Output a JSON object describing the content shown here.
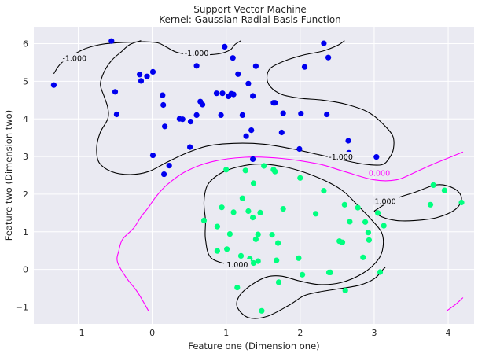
{
  "chart_data": {
    "type": "scatter",
    "title": "Support Vector Machine",
    "subtitle": "Kernel: Gaussian Radial Basis Function",
    "xlabel": "Feature one (Dimension one)",
    "ylabel": "Feature two (Dimension two)",
    "xlim": [
      -1.6,
      4.35
    ],
    "ylim": [
      -1.45,
      6.45
    ],
    "xticks": [
      -1,
      0,
      1,
      2,
      3,
      4
    ],
    "yticks": [
      -1,
      0,
      1,
      2,
      3,
      4,
      5,
      6
    ],
    "xtick_labels": [
      "−1",
      "0",
      "1",
      "2",
      "3",
      "4"
    ],
    "ytick_labels": [
      "−1",
      "0",
      "1",
      "2",
      "3",
      "4",
      "5",
      "6"
    ],
    "grid": true,
    "colors": {
      "background": "#eaeaf2",
      "grid": "#ffffff",
      "class_a": "#0000ee",
      "class_b": "#00ff7f",
      "decision_boundary": "#ff00ff",
      "margin": "#000000"
    },
    "series": [
      {
        "points": [
          [
            -1.33,
            4.9
          ],
          [
            -0.55,
            6.07
          ],
          [
            -0.5,
            4.72
          ],
          [
            -0.48,
            4.12
          ],
          [
            -0.17,
            5.18
          ],
          [
            -0.15,
            5.01
          ],
          [
            -0.07,
            5.13
          ],
          [
            0.01,
            5.25
          ],
          [
            0.01,
            3.03
          ],
          [
            0.14,
            4.63
          ],
          [
            0.15,
            4.37
          ],
          [
            0.17,
            3.8
          ],
          [
            0.16,
            2.53
          ],
          [
            0.23,
            2.76
          ],
          [
            0.37,
            4.0
          ],
          [
            0.41,
            3.99
          ],
          [
            0.51,
            3.25
          ],
          [
            0.52,
            3.93
          ],
          [
            0.6,
            5.41
          ],
          [
            0.6,
            4.1
          ],
          [
            0.65,
            4.46
          ],
          [
            0.68,
            4.38
          ],
          [
            0.87,
            4.68
          ],
          [
            0.93,
            4.1
          ],
          [
            0.95,
            4.68
          ],
          [
            0.98,
            5.92
          ],
          [
            1.03,
            4.6
          ],
          [
            1.07,
            4.67
          ],
          [
            1.09,
            5.62
          ],
          [
            1.1,
            4.65
          ],
          [
            1.16,
            5.19
          ],
          [
            1.22,
            4.1
          ],
          [
            1.27,
            3.54
          ],
          [
            1.3,
            4.94
          ],
          [
            1.34,
            3.7
          ],
          [
            1.36,
            4.61
          ],
          [
            1.36,
            2.93
          ],
          [
            1.4,
            5.4
          ],
          [
            1.64,
            4.43
          ],
          [
            1.66,
            4.43
          ],
          [
            1.75,
            3.64
          ],
          [
            1.77,
            4.15
          ],
          [
            1.99,
            3.2
          ],
          [
            2.01,
            4.14
          ],
          [
            2.06,
            5.38
          ],
          [
            2.32,
            6.01
          ],
          [
            2.36,
            4.12
          ],
          [
            2.38,
            5.63
          ],
          [
            2.65,
            3.42
          ],
          [
            2.66,
            3.1
          ],
          [
            3.03,
            2.99
          ]
        ]
      },
      {
        "points": [
          [
            0.7,
            1.3
          ],
          [
            0.88,
            1.14
          ],
          [
            0.88,
            0.49
          ],
          [
            0.94,
            1.65
          ],
          [
            1.0,
            2.65
          ],
          [
            1.01,
            0.54
          ],
          [
            1.05,
            0.94
          ],
          [
            1.1,
            1.52
          ],
          [
            1.15,
            -0.48
          ],
          [
            1.2,
            0.36
          ],
          [
            1.22,
            1.89
          ],
          [
            1.26,
            2.63
          ],
          [
            1.3,
            1.55
          ],
          [
            1.32,
            0.28
          ],
          [
            1.36,
            1.38
          ],
          [
            1.37,
            0.17
          ],
          [
            1.37,
            2.29
          ],
          [
            1.4,
            0.8
          ],
          [
            1.43,
            0.93
          ],
          [
            1.43,
            0.22
          ],
          [
            1.46,
            1.51
          ],
          [
            1.48,
            -1.1
          ],
          [
            1.51,
            2.75
          ],
          [
            1.62,
            0.92
          ],
          [
            1.64,
            2.65
          ],
          [
            1.66,
            2.6
          ],
          [
            1.68,
            0.24
          ],
          [
            1.7,
            0.7
          ],
          [
            1.71,
            -0.34
          ],
          [
            1.77,
            1.61
          ],
          [
            1.98,
            0.3
          ],
          [
            2.0,
            2.43
          ],
          [
            2.03,
            -0.14
          ],
          [
            2.21,
            1.48
          ],
          [
            2.32,
            2.09
          ],
          [
            2.39,
            -0.08
          ],
          [
            2.41,
            -0.08
          ],
          [
            2.53,
            0.75
          ],
          [
            2.57,
            0.72
          ],
          [
            2.6,
            1.72
          ],
          [
            2.61,
            -0.56
          ],
          [
            2.67,
            1.27
          ],
          [
            2.78,
            1.64
          ],
          [
            2.85,
            0.32
          ],
          [
            2.88,
            1.26
          ],
          [
            2.92,
            0.98
          ],
          [
            2.93,
            0.78
          ],
          [
            3.05,
            1.5
          ],
          [
            3.08,
            -0.07
          ],
          [
            3.13,
            1.16
          ],
          [
            3.8,
            2.24
          ],
          [
            3.76,
            1.72
          ],
          [
            3.95,
            2.1
          ],
          [
            4.18,
            1.78
          ]
        ]
      }
    ],
    "contours": [
      {
        "level": 0.0,
        "label": "0.000",
        "paths": [
          [
            [
              -0.05,
              -1.1
            ],
            [
              -0.2,
              -0.6
            ],
            [
              -0.35,
              -0.22
            ],
            [
              -0.47,
              0.2
            ],
            [
              -0.45,
              0.5
            ],
            [
              -0.4,
              0.8
            ],
            [
              -0.25,
              1.1
            ],
            [
              -0.15,
              1.4
            ],
            [
              -0.05,
              1.65
            ],
            [
              0.05,
              1.93
            ],
            [
              0.2,
              2.25
            ],
            [
              0.45,
              2.6
            ],
            [
              0.8,
              2.86
            ],
            [
              1.25,
              2.98
            ],
            [
              1.75,
              2.95
            ],
            [
              2.25,
              2.8
            ],
            [
              2.6,
              2.6
            ],
            [
              3.0,
              2.38
            ],
            [
              3.3,
              2.38
            ],
            [
              3.55,
              2.58
            ],
            [
              3.8,
              2.8
            ],
            [
              4.05,
              3.0
            ],
            [
              4.2,
              3.12
            ]
          ],
          [
            [
              3.98,
              -1.1
            ],
            [
              4.1,
              -0.93
            ],
            [
              4.2,
              -0.75
            ]
          ]
        ],
        "label_at": [
          3.07,
          2.55
        ]
      },
      {
        "level": -1.0,
        "label": "-1.000",
        "paths": [
          [
            [
              -1.33,
              5.2
            ],
            [
              -1.22,
              5.5
            ],
            [
              -0.95,
              5.83
            ],
            [
              -0.72,
              5.97
            ],
            [
              -0.5,
              6.02
            ],
            [
              -0.28,
              6.04
            ],
            [
              -0.1,
              6.05
            ],
            [
              0.08,
              6.02
            ],
            [
              0.2,
              5.9
            ],
            [
              0.32,
              5.78
            ],
            [
              0.47,
              5.72
            ],
            [
              0.67,
              5.7
            ],
            [
              0.9,
              5.73
            ],
            [
              1.05,
              5.83
            ],
            [
              1.12,
              5.98
            ],
            [
              1.2,
              6.08
            ]
          ],
          [
            [
              -0.15,
              6.08
            ],
            [
              -0.3,
              5.98
            ],
            [
              -0.42,
              5.78
            ],
            [
              -0.55,
              5.55
            ],
            [
              -0.65,
              5.25
            ],
            [
              -0.7,
              4.92
            ],
            [
              -0.65,
              4.6
            ],
            [
              -0.6,
              4.3
            ],
            [
              -0.6,
              4.0
            ],
            [
              -0.7,
              3.65
            ],
            [
              -0.75,
              3.25
            ],
            [
              -0.72,
              2.85
            ],
            [
              -0.55,
              2.6
            ],
            [
              -0.3,
              2.52
            ],
            [
              -0.05,
              2.6
            ],
            [
              0.2,
              2.85
            ],
            [
              0.45,
              3.08
            ],
            [
              0.75,
              3.28
            ],
            [
              1.1,
              3.35
            ],
            [
              1.5,
              3.33
            ],
            [
              1.9,
              3.2
            ],
            [
              2.25,
              3.05
            ],
            [
              2.55,
              2.92
            ],
            [
              2.85,
              2.8
            ],
            [
              3.1,
              2.78
            ],
            [
              3.2,
              2.95
            ],
            [
              3.26,
              3.2
            ],
            [
              3.25,
              3.55
            ],
            [
              3.1,
              3.9
            ],
            [
              2.9,
              4.2
            ],
            [
              2.6,
              4.4
            ],
            [
              2.3,
              4.5
            ],
            [
              2.0,
              4.55
            ],
            [
              1.75,
              4.65
            ],
            [
              1.6,
              4.85
            ],
            [
              1.55,
              5.1
            ],
            [
              1.6,
              5.35
            ],
            [
              1.8,
              5.55
            ],
            [
              2.05,
              5.7
            ],
            [
              2.3,
              5.8
            ],
            [
              2.5,
              5.95
            ],
            [
              2.6,
              6.08
            ]
          ]
        ],
        "label_at": [
          [
            -1.05,
            5.6
          ],
          [
            0.6,
            5.74
          ],
          [
            2.55,
            2.98
          ]
        ]
      },
      {
        "level": 1.0,
        "label": "1.000",
        "paths": [
          [
            [
              1.1,
              0.1
            ],
            [
              0.8,
              0.3
            ],
            [
              0.72,
              0.8
            ],
            [
              0.72,
              1.3
            ],
            [
              0.7,
              1.8
            ],
            [
              0.75,
              2.25
            ],
            [
              0.92,
              2.55
            ],
            [
              1.15,
              2.72
            ],
            [
              1.45,
              2.8
            ],
            [
              1.8,
              2.72
            ],
            [
              2.1,
              2.55
            ],
            [
              2.4,
              2.3
            ],
            [
              2.6,
              2.05
            ],
            [
              2.78,
              1.7
            ],
            [
              2.95,
              1.35
            ],
            [
              3.1,
              0.98
            ],
            [
              3.12,
              0.6
            ],
            [
              3.05,
              0.25
            ],
            [
              2.85,
              -0.1
            ],
            [
              2.55,
              -0.35
            ],
            [
              2.25,
              -0.4
            ],
            [
              1.98,
              -0.3
            ],
            [
              1.75,
              -0.18
            ],
            [
              1.55,
              -0.2
            ],
            [
              1.35,
              -0.4
            ],
            [
              1.18,
              -0.7
            ],
            [
              1.15,
              -1.0
            ],
            [
              1.3,
              -1.28
            ],
            [
              1.55,
              -1.25
            ],
            [
              1.85,
              -0.95
            ],
            [
              2.05,
              -0.7
            ],
            [
              2.25,
              -0.6
            ],
            [
              2.5,
              -0.52
            ],
            [
              2.8,
              -0.42
            ],
            [
              3.0,
              -0.25
            ],
            [
              3.12,
              0.0
            ],
            [
              3.15,
              0.05
            ]
          ],
          [
            [
              3.0,
              1.55
            ],
            [
              3.25,
              1.85
            ],
            [
              3.55,
              2.05
            ],
            [
              3.85,
              2.25
            ],
            [
              4.08,
              2.15
            ],
            [
              4.18,
              1.9
            ],
            [
              4.1,
              1.6
            ],
            [
              3.85,
              1.38
            ],
            [
              3.55,
              1.3
            ],
            [
              3.3,
              1.3
            ],
            [
              3.1,
              1.4
            ],
            [
              3.0,
              1.55
            ]
          ]
        ],
        "label_at": [
          [
            1.15,
            0.12
          ],
          [
            3.15,
            1.8
          ]
        ]
      }
    ]
  }
}
